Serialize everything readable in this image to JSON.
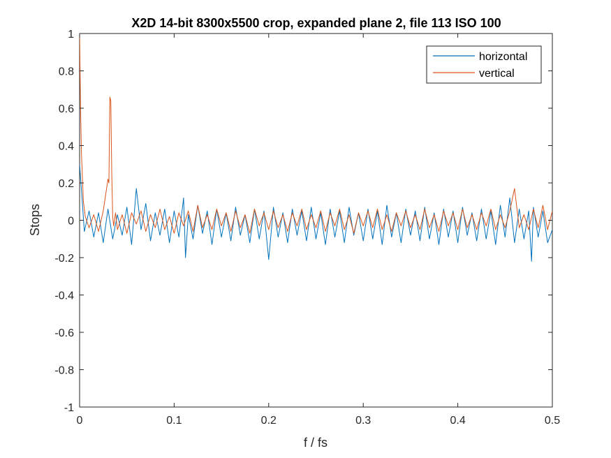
{
  "chart_data": {
    "type": "line",
    "title": "X2D 14-bit 8300x5500 crop, expanded plane 2, file 113 ISO 100",
    "xlabel": "f / fs",
    "ylabel": "Stops",
    "xlim": [
      0,
      0.5
    ],
    "ylim": [
      -1,
      1
    ],
    "x_ticks": [
      0,
      0.1,
      0.2,
      0.3,
      0.4,
      0.5
    ],
    "x_tick_labels": [
      "0",
      "0.1",
      "0.2",
      "0.3",
      "0.4",
      "0.5"
    ],
    "y_ticks": [
      -1,
      -0.8,
      -0.6,
      -0.4,
      -0.2,
      0,
      0.2,
      0.4,
      0.6,
      0.8,
      1
    ],
    "y_tick_labels": [
      "-1",
      "-0.8",
      "-0.6",
      "-0.4",
      "-0.2",
      "0",
      "0.2",
      "0.4",
      "0.6",
      "0.8",
      "1"
    ],
    "grid": false,
    "legend_position": "top-right",
    "series": [
      {
        "name": "horizontal",
        "color": "#0072BD",
        "x": [
          0,
          0.002,
          0.005,
          0.01,
          0.015,
          0.02,
          0.025,
          0.03,
          0.035,
          0.04,
          0.045,
          0.05,
          0.055,
          0.06,
          0.065,
          0.07,
          0.075,
          0.08,
          0.085,
          0.09,
          0.095,
          0.1,
          0.105,
          0.11,
          0.112,
          0.115,
          0.12,
          0.125,
          0.13,
          0.135,
          0.14,
          0.145,
          0.15,
          0.155,
          0.16,
          0.165,
          0.17,
          0.175,
          0.18,
          0.185,
          0.19,
          0.195,
          0.2,
          0.205,
          0.21,
          0.215,
          0.22,
          0.225,
          0.23,
          0.235,
          0.24,
          0.245,
          0.25,
          0.255,
          0.26,
          0.265,
          0.27,
          0.275,
          0.28,
          0.285,
          0.29,
          0.295,
          0.3,
          0.305,
          0.31,
          0.315,
          0.32,
          0.325,
          0.33,
          0.335,
          0.34,
          0.345,
          0.35,
          0.355,
          0.36,
          0.365,
          0.37,
          0.375,
          0.38,
          0.385,
          0.39,
          0.395,
          0.4,
          0.405,
          0.41,
          0.415,
          0.42,
          0.425,
          0.43,
          0.435,
          0.44,
          0.445,
          0.45,
          0.455,
          0.46,
          0.465,
          0.47,
          0.475,
          0.478,
          0.48,
          0.485,
          0.49,
          0.495,
          0.5
        ],
        "values": [
          0.3,
          0.16,
          -0.06,
          0.05,
          -0.09,
          0.04,
          -0.12,
          0.06,
          -0.1,
          0.03,
          -0.08,
          0.07,
          -0.13,
          0.17,
          -0.05,
          0.09,
          -0.11,
          0.04,
          -0.08,
          0.06,
          -0.12,
          0.05,
          -0.09,
          0.12,
          -0.2,
          0.03,
          -0.1,
          0.08,
          -0.07,
          0.05,
          -0.13,
          0.06,
          -0.09,
          0.04,
          -0.11,
          0.07,
          -0.08,
          0.03,
          -0.12,
          0.06,
          -0.1,
          0.05,
          -0.21,
          0.07,
          -0.09,
          0.04,
          -0.12,
          0.06,
          -0.08,
          0.05,
          -0.11,
          0.07,
          -0.1,
          0.04,
          -0.13,
          0.06,
          -0.09,
          0.05,
          -0.12,
          0.07,
          -0.08,
          0.04,
          -0.11,
          0.06,
          -0.1,
          0.05,
          -0.13,
          0.08,
          -0.09,
          0.04,
          -0.12,
          0.06,
          -0.08,
          0.05,
          -0.11,
          0.07,
          -0.1,
          0.04,
          -0.13,
          0.06,
          -0.09,
          0.05,
          -0.12,
          0.07,
          -0.08,
          0.04,
          -0.11,
          0.06,
          -0.1,
          0.05,
          -0.13,
          0.08,
          -0.09,
          0.12,
          -0.12,
          0.06,
          -0.1,
          0.05,
          -0.22,
          0.07,
          -0.09,
          0.05,
          -0.12,
          -0.05
        ]
      },
      {
        "name": "vertical",
        "color": "#D95319",
        "x": [
          0,
          0.001,
          0.002,
          0.004,
          0.006,
          0.01,
          0.015,
          0.02,
          0.025,
          0.03,
          0.031,
          0.032,
          0.033,
          0.034,
          0.035,
          0.036,
          0.038,
          0.04,
          0.045,
          0.05,
          0.055,
          0.06,
          0.065,
          0.07,
          0.075,
          0.08,
          0.085,
          0.09,
          0.095,
          0.1,
          0.105,
          0.11,
          0.115,
          0.12,
          0.125,
          0.13,
          0.135,
          0.14,
          0.145,
          0.15,
          0.155,
          0.16,
          0.165,
          0.17,
          0.175,
          0.18,
          0.185,
          0.19,
          0.195,
          0.2,
          0.205,
          0.21,
          0.215,
          0.22,
          0.225,
          0.23,
          0.235,
          0.24,
          0.245,
          0.25,
          0.255,
          0.26,
          0.265,
          0.27,
          0.275,
          0.28,
          0.285,
          0.29,
          0.295,
          0.3,
          0.305,
          0.31,
          0.315,
          0.32,
          0.325,
          0.33,
          0.335,
          0.34,
          0.345,
          0.35,
          0.355,
          0.36,
          0.365,
          0.37,
          0.375,
          0.38,
          0.385,
          0.39,
          0.395,
          0.4,
          0.405,
          0.41,
          0.415,
          0.42,
          0.425,
          0.43,
          0.435,
          0.44,
          0.445,
          0.45,
          0.455,
          0.46,
          0.465,
          0.47,
          0.475,
          0.48,
          0.485,
          0.49,
          0.495,
          0.5
        ],
        "values": [
          1.0,
          0.6,
          0.35,
          0.1,
          0.02,
          -0.04,
          0.03,
          -0.06,
          0.05,
          0.22,
          0.2,
          0.66,
          0.64,
          0.25,
          0.02,
          -0.03,
          0.04,
          -0.05,
          0.03,
          -0.07,
          0.04,
          -0.02,
          0.05,
          -0.06,
          0.03,
          -0.04,
          0.06,
          -0.05,
          0.02,
          -0.07,
          0.04,
          -0.03,
          0.05,
          -0.06,
          0.08,
          -0.04,
          0.03,
          -0.05,
          0.06,
          -0.03,
          0.04,
          -0.06,
          0.05,
          -0.04,
          0.03,
          -0.07,
          0.06,
          -0.03,
          0.04,
          -0.05,
          0.05,
          -0.04,
          0.03,
          -0.06,
          0.04,
          -0.03,
          0.06,
          -0.05,
          0.03,
          -0.04,
          0.05,
          -0.06,
          0.04,
          -0.03,
          0.06,
          -0.05,
          0.03,
          -0.07,
          0.04,
          -0.03,
          0.05,
          -0.04,
          0.06,
          -0.05,
          0.03,
          -0.06,
          0.04,
          -0.03,
          0.05,
          -0.04,
          0.03,
          -0.05,
          0.06,
          -0.04,
          0.03,
          -0.06,
          0.05,
          -0.03,
          0.04,
          -0.05,
          0.06,
          -0.04,
          0.03,
          -0.05,
          0.04,
          -0.03,
          0.06,
          -0.05,
          0.03,
          -0.04,
          0.05,
          0.17,
          -0.04,
          0.03,
          -0.05,
          0.06,
          -0.04,
          0.08,
          -0.05,
          0.05
        ]
      }
    ]
  }
}
